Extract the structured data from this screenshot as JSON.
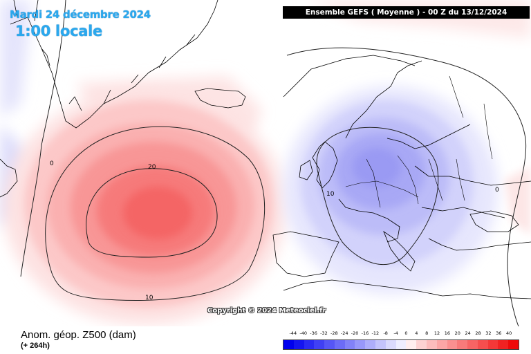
{
  "header": {
    "date": "Mardi 24 décembre 2024",
    "local_time": "1:00 locale",
    "run_info": "Ensemble GEFS  ( Moyenne )  - 00 Z du 13/12/2024"
  },
  "map": {
    "copyright": "Copyright © 2024 Meteociel.fr",
    "contour_labels": [
      "20",
      "10",
      "0",
      "10",
      "0"
    ]
  },
  "footer": {
    "variable": "Anom. géop. Z500 (dam)",
    "lead_time": "(+ 264h)"
  },
  "scale": {
    "ticks": [
      "-44",
      "-40",
      "-36",
      "-32",
      "-28",
      "-24",
      "-20",
      "-16",
      "-12",
      "-8",
      "-4",
      "0",
      "4",
      "8",
      "12",
      "16",
      "20",
      "24",
      "28",
      "32",
      "36",
      "40"
    ],
    "colors": [
      "#0000ee",
      "#1414f0",
      "#2a2af2",
      "#4040f4",
      "#5656f6",
      "#6c6cf7",
      "#8282f8",
      "#9898fa",
      "#aeaefb",
      "#c4c4fc",
      "#dadafd",
      "#eeeeff",
      "#ffeeee",
      "#fdd2d2",
      "#fcbcbc",
      "#fba6a6",
      "#fa9090",
      "#f87a7a",
      "#f76464",
      "#f54e4e",
      "#f33838",
      "#f12222",
      "#ee0a0a"
    ]
  },
  "colors": {
    "accent_title": "#2aa8ee",
    "land_outline": "#000000"
  }
}
